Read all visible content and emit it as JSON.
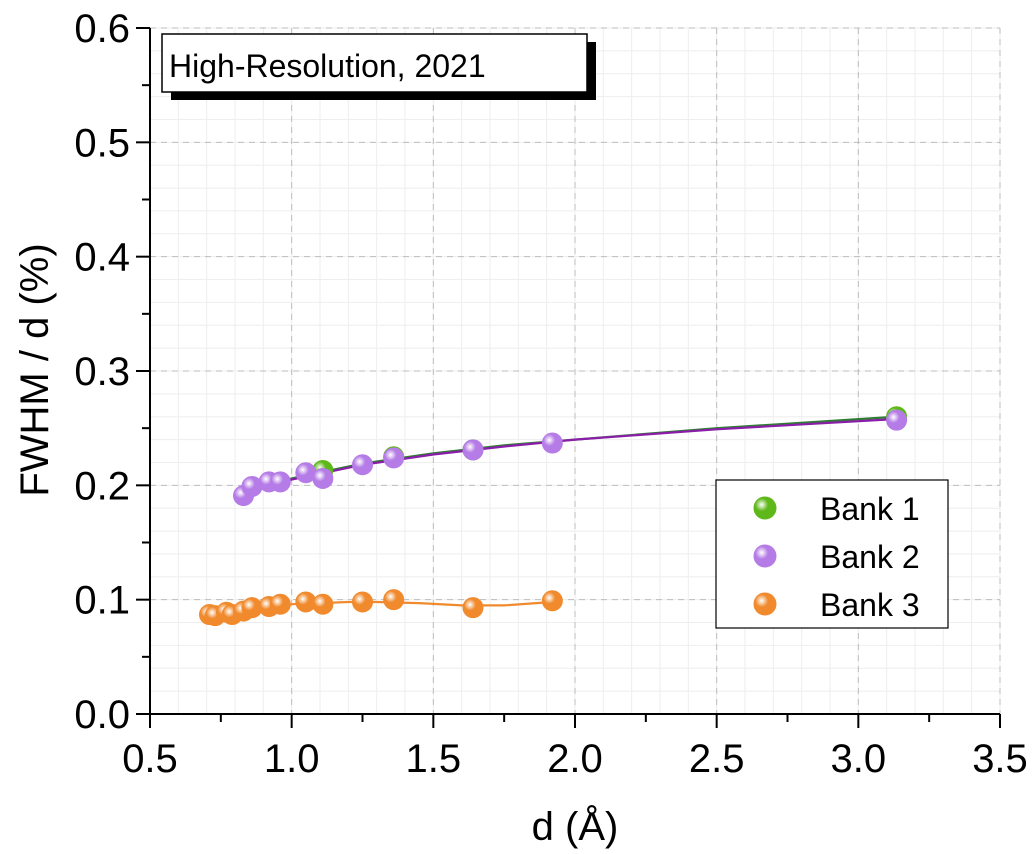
{
  "chart_data": {
    "type": "scatter",
    "annotation": "High-Resolution, 2021",
    "xlabel": "d (Å)",
    "ylabel": "FWHM / d (%)",
    "xlim": [
      0.5,
      3.5
    ],
    "ylim": [
      0.0,
      0.6
    ],
    "x_ticks": [
      "0.5",
      "1.0",
      "1.5",
      "2.0",
      "2.5",
      "3.0",
      "3.5"
    ],
    "y_ticks": [
      "0.0",
      "0.1",
      "0.2",
      "0.3",
      "0.4",
      "0.5",
      "0.6"
    ],
    "grid": true,
    "legend_position": "bottom-right",
    "series": [
      {
        "name": "Bank 1",
        "color": "#5fb81a",
        "line_color": "#2e7d32",
        "points": [
          [
            1.11,
            0.213
          ],
          [
            1.36,
            0.225
          ],
          [
            1.64,
            0.231
          ],
          [
            3.135,
            0.26
          ]
        ],
        "fit": [
          [
            0.83,
            0.194
          ],
          [
            1.0,
            0.206
          ],
          [
            1.25,
            0.219
          ],
          [
            1.5,
            0.228
          ],
          [
            1.75,
            0.235
          ],
          [
            2.0,
            0.24
          ],
          [
            2.5,
            0.25
          ],
          [
            3.135,
            0.26
          ]
        ]
      },
      {
        "name": "Bank 2",
        "color": "#b57be6",
        "line_color": "#8a1ea8",
        "points": [
          [
            0.83,
            0.191
          ],
          [
            0.86,
            0.199
          ],
          [
            0.92,
            0.203
          ],
          [
            0.96,
            0.203
          ],
          [
            1.05,
            0.211
          ],
          [
            1.11,
            0.206
          ],
          [
            1.25,
            0.218
          ],
          [
            1.36,
            0.224
          ],
          [
            1.64,
            0.231
          ],
          [
            1.92,
            0.237
          ],
          [
            3.135,
            0.257
          ]
        ],
        "fit": [
          [
            0.83,
            0.193
          ],
          [
            1.0,
            0.205
          ],
          [
            1.25,
            0.218
          ],
          [
            1.5,
            0.227
          ],
          [
            1.75,
            0.234
          ],
          [
            2.0,
            0.24
          ],
          [
            2.5,
            0.249
          ],
          [
            3.135,
            0.258
          ]
        ]
      },
      {
        "name": "Bank 3",
        "color": "#f08a2c",
        "line_color": "#f08a2c",
        "points": [
          [
            0.71,
            0.087
          ],
          [
            0.73,
            0.086
          ],
          [
            0.77,
            0.089
          ],
          [
            0.79,
            0.087
          ],
          [
            0.83,
            0.09
          ],
          [
            0.86,
            0.093
          ],
          [
            0.92,
            0.094
          ],
          [
            0.96,
            0.096
          ],
          [
            1.05,
            0.098
          ],
          [
            1.11,
            0.096
          ],
          [
            1.25,
            0.098
          ],
          [
            1.36,
            0.1
          ],
          [
            1.64,
            0.093
          ],
          [
            1.92,
            0.099
          ]
        ],
        "fit": [
          [
            0.71,
            0.087
          ],
          [
            0.8,
            0.09
          ],
          [
            0.9,
            0.093
          ],
          [
            1.0,
            0.096
          ],
          [
            1.1,
            0.097
          ],
          [
            1.2,
            0.098
          ],
          [
            1.3,
            0.098
          ],
          [
            1.45,
            0.097
          ],
          [
            1.6,
            0.095
          ],
          [
            1.75,
            0.095
          ],
          [
            1.92,
            0.098
          ]
        ]
      }
    ]
  }
}
